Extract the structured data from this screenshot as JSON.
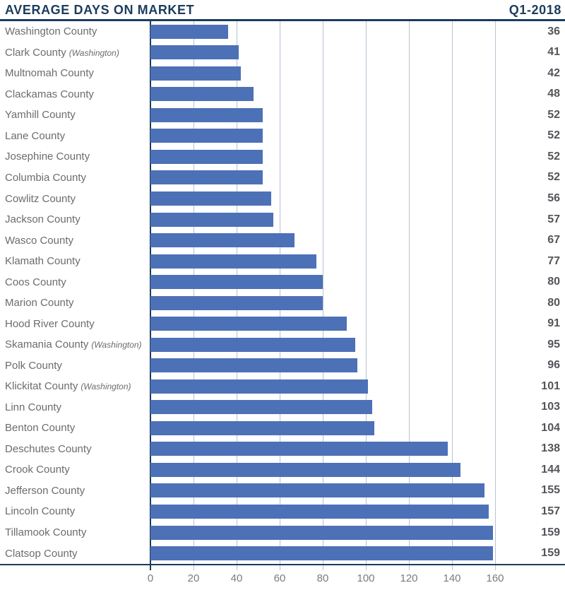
{
  "header": {
    "title": "AVERAGE DAYS ON MARKET",
    "period": "Q1-2018"
  },
  "chart_data": {
    "type": "bar",
    "orientation": "horizontal",
    "title": "AVERAGE DAYS ON MARKET",
    "subtitle": "Q1-2018",
    "categories": [
      "Washington County",
      "Clark County",
      "Multnomah County",
      "Clackamas County",
      "Yamhill County",
      "Lane County",
      "Josephine County",
      "Columbia County",
      "Cowlitz County",
      "Jackson County",
      "Wasco County",
      "Klamath County",
      "Coos County",
      "Marion County",
      "Hood River County",
      "Skamania County",
      "Polk County",
      "Klickitat County",
      "Linn County",
      "Benton County",
      "Deschutes County",
      "Crook County",
      "Jefferson County",
      "Lincoln County",
      "Tillamook County",
      "Clatsop County"
    ],
    "notes": [
      "",
      "(Washington)",
      "",
      "",
      "",
      "",
      "",
      "",
      "",
      "",
      "",
      "",
      "",
      "",
      "",
      "(Washington)",
      "",
      "(Washington)",
      "",
      "",
      "",
      "",
      "",
      "",
      "",
      ""
    ],
    "values": [
      36,
      41,
      42,
      48,
      52,
      52,
      52,
      52,
      56,
      57,
      67,
      77,
      80,
      80,
      91,
      95,
      96,
      101,
      103,
      104,
      138,
      144,
      155,
      157,
      159,
      159
    ],
    "xlabel": "",
    "ylabel": "",
    "xlim": [
      0,
      160
    ],
    "x_ticks": [
      0,
      20,
      40,
      60,
      80,
      100,
      120,
      140,
      160
    ],
    "grid": "vertical-gridlines-on",
    "legend": "none",
    "value_labels": "right-aligned-at-row-end",
    "colors": {
      "bar": "#4d71b7",
      "axis_line": "#1b3c5e",
      "gridline": "#b7c3d1",
      "category_label": "#6b6c6f",
      "value_label": "#54555a",
      "tick_label": "#7a7b7e"
    }
  }
}
